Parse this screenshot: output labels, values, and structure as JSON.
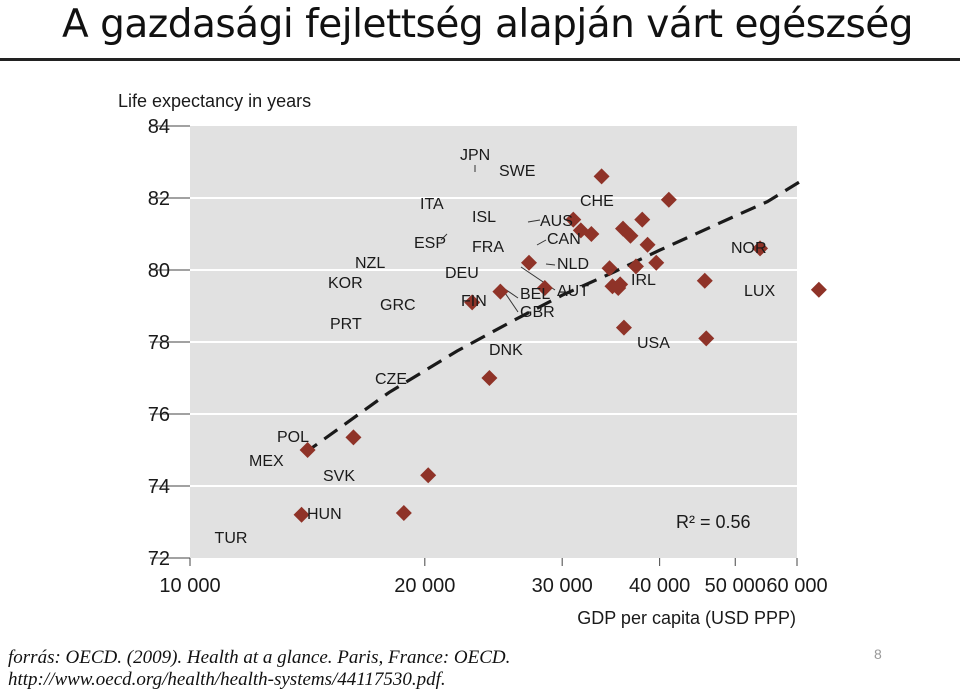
{
  "slide": {
    "title": "A gazdasági fejlettség alapján várt egészség",
    "source_line1": "forrás: OECD. (2009). Health at a glance. Paris, France: OECD.",
    "source_line2": "http://www.oecd.org/health/health-systems/44117530.pdf.",
    "page_number": "8"
  },
  "chart_data": {
    "type": "scatter",
    "title": "",
    "xlabel": "GDP per capita (USD PPP)",
    "ylabel": "Life expectancy in years",
    "x_scale": "log",
    "xlim": [
      10000,
      60000
    ],
    "ylim": [
      72,
      84
    ],
    "x_ticks": [
      10000,
      20000,
      30000,
      40000,
      50000,
      60000
    ],
    "x_tick_labels": [
      "10 000",
      "20 000",
      "30 000",
      "40 000",
      "50 000",
      "60 000"
    ],
    "y_ticks": [
      72,
      74,
      76,
      78,
      80,
      82,
      84
    ],
    "y_tick_labels": [
      "72",
      "74",
      "76",
      "78",
      "80",
      "82",
      "84"
    ],
    "grid": "horizontal",
    "background_color": "#e1e1e1",
    "marker_color": "#8f3328",
    "trend_color": "#1a1a1a",
    "points": [
      {
        "label": "TUR",
        "x": 13900,
        "y": 73.2
      },
      {
        "label": "MEX",
        "x": 14150,
        "y": 75.0
      },
      {
        "label": "POL",
        "x": 16200,
        "y": 75.35
      },
      {
        "label": "HUN",
        "x": 18800,
        "y": 73.25
      },
      {
        "label": "SVK",
        "x": 20200,
        "y": 74.3
      },
      {
        "label": "PRT",
        "x": 23000,
        "y": 79.1
      },
      {
        "label": "KOR",
        "x": 25000,
        "y": 79.4
      },
      {
        "label": "NZL",
        "x": 27200,
        "y": 80.2
      },
      {
        "label": "GRC",
        "x": 28500,
        "y": 79.5
      },
      {
        "label": "CZE",
        "x": 24200,
        "y": 77.0
      },
      {
        "label": "ITA",
        "x": 31000,
        "y": 81.4
      },
      {
        "label": "ESP",
        "x": 31700,
        "y": 81.1
      },
      {
        "label": "ISL",
        "x": 32700,
        "y": 81.0
      },
      {
        "label": "JPN",
        "x": 33700,
        "y": 82.6
      },
      {
        "label": "DEU",
        "x": 34500,
        "y": 80.05
      },
      {
        "label": "FIN",
        "x": 34800,
        "y": 79.55
      },
      {
        "label": "SWE",
        "x": 35900,
        "y": 81.15
      },
      {
        "label": "FRA",
        "x": 36700,
        "y": 80.95
      },
      {
        "label": "BEL",
        "x": 35400,
        "y": 79.5
      },
      {
        "label": "GBR",
        "x": 35600,
        "y": 79.6
      },
      {
        "label": "DNK",
        "x": 36000,
        "y": 78.4
      },
      {
        "label": "AUT",
        "x": 37300,
        "y": 80.1
      },
      {
        "label": "AUS",
        "x": 38000,
        "y": 81.4
      },
      {
        "label": "CAN",
        "x": 38600,
        "y": 80.7
      },
      {
        "label": "NLD",
        "x": 39600,
        "y": 80.2
      },
      {
        "label": "CHE",
        "x": 41100,
        "y": 81.95
      },
      {
        "label": "IRL",
        "x": 45700,
        "y": 79.7
      },
      {
        "label": "USA",
        "x": 45900,
        "y": 78.1
      },
      {
        "label": "NOR",
        "x": 53800,
        "y": 80.6
      },
      {
        "label": "LUX",
        "x": 64000,
        "y": 79.45
      }
    ],
    "trendline": {
      "style": "dashed",
      "points": [
        [
          14000,
          74.9
        ],
        [
          18000,
          76.6
        ],
        [
          22000,
          77.75
        ],
        [
          26000,
          78.6
        ],
        [
          30000,
          79.3
        ],
        [
          35000,
          79.95
        ],
        [
          40000,
          80.55
        ],
        [
          45000,
          81.05
        ],
        [
          50000,
          81.5
        ],
        [
          55000,
          81.9
        ],
        [
          61000,
          82.5
        ]
      ]
    },
    "annotations": [
      {
        "text": "R² = 0.56"
      }
    ]
  }
}
